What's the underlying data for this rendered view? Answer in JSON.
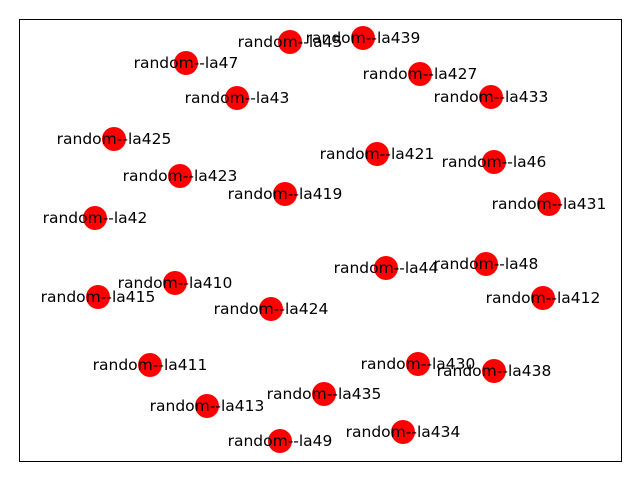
{
  "graph": {
    "node_color": "#ff0000",
    "label_color": "#000000",
    "frame": true,
    "edges": [],
    "nodes": [
      "random--la45",
      "random--la439",
      "random--la47",
      "random--la427",
      "random--la43",
      "random--la433",
      "random--la425",
      "random--la421",
      "random--la46",
      "random--la423",
      "random--la419",
      "random--la431",
      "random--la42",
      "random--la44",
      "random--la48",
      "random--la410",
      "random--la415",
      "random--la424",
      "random--la412",
      "random--la411",
      "random--la430",
      "random--la438",
      "random--la435",
      "random--la413",
      "random--la434",
      "random--la49"
    ]
  }
}
